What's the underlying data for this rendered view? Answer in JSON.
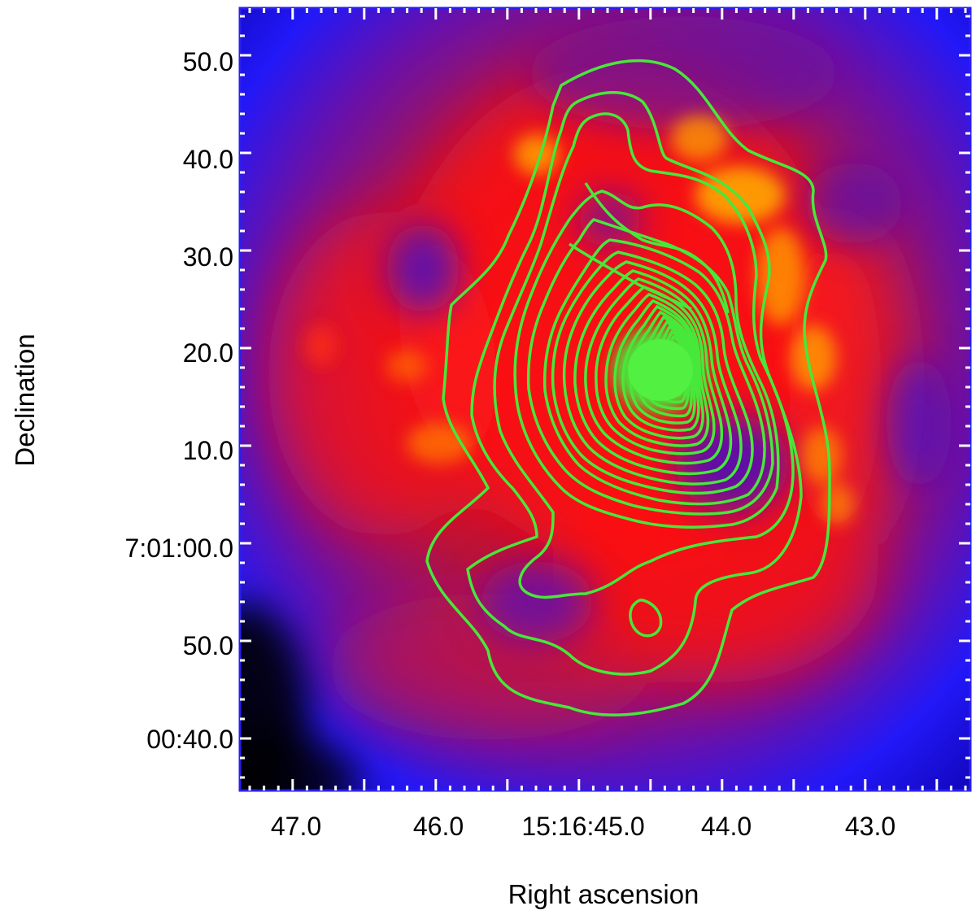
{
  "figure": {
    "xlabel": "Right ascension",
    "ylabel": "Declination"
  },
  "axes": {
    "x_ticks": [
      "47.0",
      "46.0",
      "15:16:45.0",
      "44.0",
      "43.0"
    ],
    "y_ticks": [
      "50.0",
      "40.0",
      "30.0",
      "20.0",
      "10.0",
      "7:01:00.0",
      "50.0",
      "00:40.0"
    ]
  },
  "colors": {
    "frame": "#2a1ef0",
    "contour": "#46e83a",
    "ticks": "#ffffff",
    "image_low": "#000000",
    "image_mid_low": "#1a14ff",
    "image_mid": "#9a1a6a",
    "image_high": "#ff1a10",
    "image_peak": "#ffb000"
  }
}
